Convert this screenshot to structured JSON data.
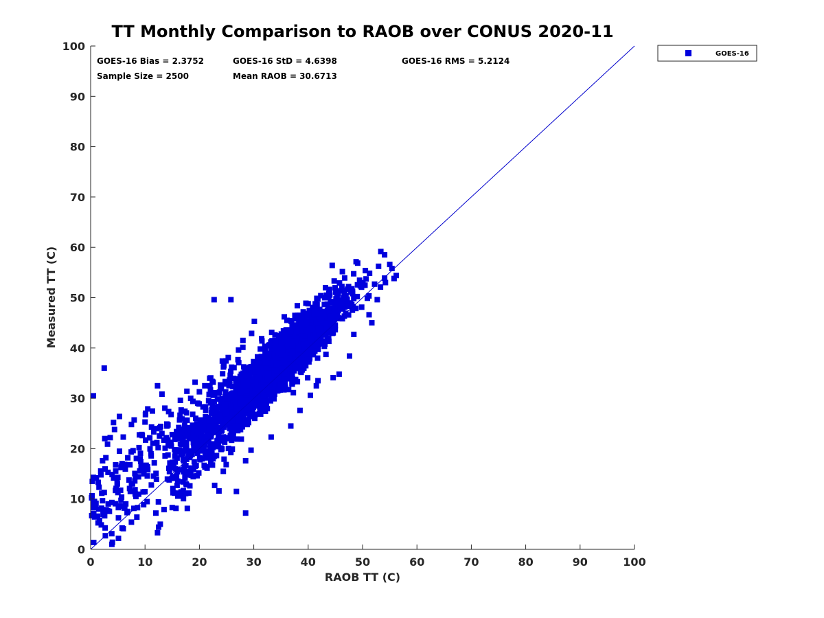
{
  "chart_data": {
    "type": "scatter",
    "title": "TT Monthly Comparison to RAOB over CONUS 2020-11",
    "xlabel": "RAOB TT (C)",
    "ylabel": "Measured TT (C)",
    "xlim": [
      0,
      100
    ],
    "ylim": [
      0,
      100
    ],
    "xticks": [
      "0",
      "10",
      "20",
      "30",
      "40",
      "50",
      "60",
      "70",
      "80",
      "90",
      "100"
    ],
    "yticks": [
      "0",
      "10",
      "20",
      "30",
      "40",
      "50",
      "60",
      "70",
      "80",
      "90",
      "100"
    ],
    "grid": false,
    "legend_position": "outside-top-right",
    "reference_line": {
      "from": [
        0,
        0
      ],
      "to": [
        100,
        100
      ],
      "color": "#0000cc"
    },
    "series": [
      {
        "name": "GOES-16",
        "color": "#0000dd",
        "marker": "square",
        "sample_size": 2500,
        "points": [
          [
            0.5,
            30.5
          ],
          [
            2.5,
            36
          ],
          [
            2.7,
            2.7
          ],
          [
            3.9,
            1
          ],
          [
            4,
            1.4
          ],
          [
            22.7,
            49.6
          ],
          [
            25.8,
            49.6
          ],
          [
            28.5,
            7.2
          ],
          [
            26.8,
            11.5
          ],
          [
            23.6,
            11.6
          ],
          [
            0.3,
            13.5
          ],
          [
            0.5,
            14.3
          ],
          [
            0.2,
            6.7
          ],
          [
            1.5,
            8
          ],
          [
            2.4,
            7.2
          ],
          [
            0.8,
            8.6
          ],
          [
            1.4,
            13.3
          ],
          [
            1.9,
            14.8
          ],
          [
            2.2,
            17.6
          ],
          [
            2.8,
            18.2
          ],
          [
            3.1,
            20.9
          ],
          [
            3.6,
            22.2
          ],
          [
            2.6,
            22
          ],
          [
            4.2,
            25.2
          ],
          [
            5.3,
            26.4
          ],
          [
            4.4,
            23.8
          ],
          [
            3.2,
            15.3
          ],
          [
            5.3,
            19.5
          ],
          [
            4.6,
            16.8
          ],
          [
            5,
            14.3
          ],
          [
            5.1,
            8.3
          ],
          [
            6.2,
            8.2
          ],
          [
            6,
            4.1
          ],
          [
            6.7,
            7.3
          ],
          [
            7.5,
            5.4
          ],
          [
            8.5,
            6.4
          ],
          [
            7.3,
            11.5
          ],
          [
            8.2,
            11
          ],
          [
            8.8,
            14.4
          ],
          [
            9.8,
            15
          ],
          [
            10.2,
            16.7
          ],
          [
            10.5,
            15.8
          ],
          [
            10.1,
            21.7
          ],
          [
            11.2,
            24.3
          ],
          [
            10.5,
            27.9
          ],
          [
            12.3,
            32.5
          ],
          [
            13.1,
            23
          ],
          [
            12.3,
            3.3
          ],
          [
            12.5,
            4.4
          ],
          [
            12.8,
            5
          ],
          [
            12,
            7.2
          ],
          [
            13.5,
            7.9
          ],
          [
            15,
            8.3
          ],
          [
            8.9,
            20.2
          ],
          [
            9.5,
            22.6
          ],
          [
            10,
            25.3
          ],
          [
            8,
            25.7
          ],
          [
            7.5,
            24.8
          ],
          [
            6,
            22.3
          ],
          [
            7.8,
            19.6
          ],
          [
            13.7,
            20.1
          ],
          [
            14.2,
            21.7
          ],
          [
            15,
            22.8
          ],
          [
            16.2,
            24.2
          ],
          [
            14.8,
            26.8
          ],
          [
            16.5,
            29.6
          ],
          [
            17.7,
            31.4
          ],
          [
            19.2,
            33.2
          ],
          [
            18.4,
            30
          ],
          [
            14.4,
            16.1
          ],
          [
            15.6,
            16
          ],
          [
            15.9,
            12.7
          ],
          [
            16.7,
            11.4
          ],
          [
            17,
            13.4
          ],
          [
            17.2,
            16.3
          ],
          [
            18,
            14.8
          ],
          [
            19.2,
            16.5
          ],
          [
            20.1,
            17.8
          ],
          [
            21,
            20.8
          ],
          [
            22.3,
            19.1
          ],
          [
            22.8,
            12.7
          ],
          [
            24.4,
            15.5
          ],
          [
            27.7,
            21.9
          ],
          [
            28.5,
            17.6
          ],
          [
            29.5,
            19.7
          ],
          [
            33.2,
            22.3
          ],
          [
            36.8,
            24.5
          ],
          [
            38.5,
            27.6
          ],
          [
            40.4,
            30.6
          ],
          [
            41.5,
            32.5
          ],
          [
            41.8,
            33.5
          ],
          [
            44.6,
            34.1
          ],
          [
            45.7,
            34.8
          ],
          [
            47.6,
            38.4
          ],
          [
            48.4,
            42.7
          ],
          [
            51.2,
            46.6
          ],
          [
            51.7,
            45
          ],
          [
            52.7,
            49.6
          ],
          [
            53.3,
            52.1
          ],
          [
            54.2,
            53
          ],
          [
            55,
            56.6
          ],
          [
            55.4,
            55.8
          ],
          [
            55.8,
            53.8
          ],
          [
            56.2,
            54.4
          ],
          [
            38,
            48.4
          ],
          [
            40,
            48.8
          ],
          [
            36.1,
            45.5
          ],
          [
            35.6,
            46.2
          ],
          [
            30.1,
            45.3
          ],
          [
            27.2,
            39.6
          ],
          [
            28,
            41.5
          ],
          [
            29.6,
            42.9
          ],
          [
            31.5,
            41.4
          ],
          [
            33.3,
            43.1
          ],
          [
            25.3,
            38.1
          ],
          [
            24.5,
            36.5
          ],
          [
            21.9,
            34
          ],
          [
            21,
            32.5
          ],
          [
            20,
            31.3
          ],
          [
            18.8,
            29.4
          ]
        ]
      }
    ],
    "legend": [
      {
        "label": "GOES-16",
        "marker": "square",
        "color": "#0000dd"
      }
    ],
    "stats": {
      "bias": "GOES-16 Bias = 2.3752",
      "std": "GOES-16 StD = 4.6398",
      "rms": "GOES-16 RMS = 5.2124",
      "sample_size": "Sample Size = 2500",
      "mean_raob": "Mean RAOB = 30.6713"
    }
  }
}
